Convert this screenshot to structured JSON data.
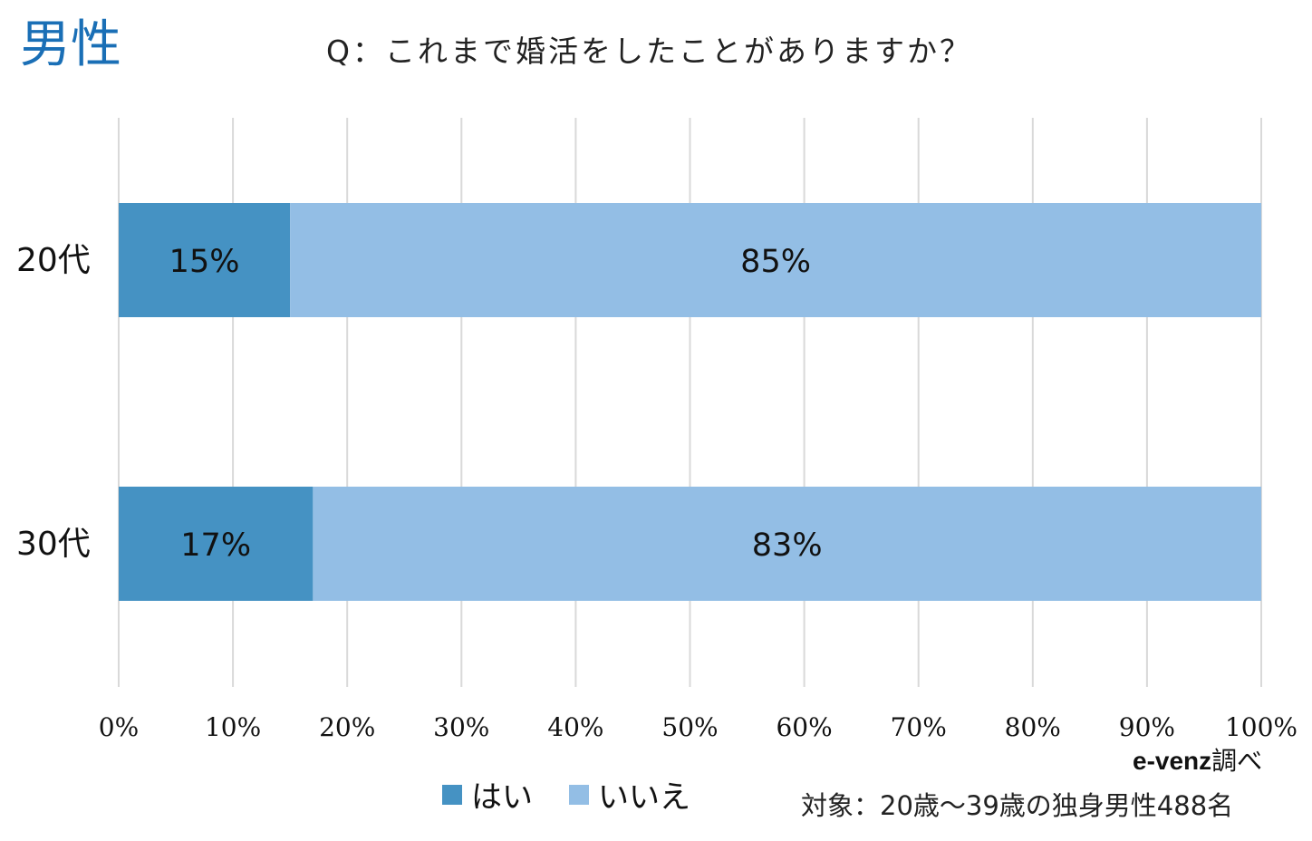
{
  "corner_title": "男性",
  "question": "Q：これまで婚活をしたことがありますか？",
  "source": {
    "name": "e-venz",
    "suffix": "調べ"
  },
  "target_note": "対象：20歳〜39歳の独身男性488名",
  "colors": {
    "yes": "#4592c3",
    "no": "#93bee5",
    "grid": "#d9d9d9",
    "title": "#1a6fb6"
  },
  "chart_data": {
    "type": "bar",
    "orientation": "horizontal",
    "stacked": true,
    "categories": [
      "20代",
      "30代"
    ],
    "series": [
      {
        "name": "はい",
        "values": [
          15,
          17
        ],
        "labels": [
          "15%",
          "17%"
        ]
      },
      {
        "name": "いいえ",
        "values": [
          85,
          83
        ],
        "labels": [
          "85%",
          "83%"
        ]
      }
    ],
    "xlim": [
      0,
      100
    ],
    "x_ticks": [
      "0%",
      "10%",
      "20%",
      "30%",
      "40%",
      "50%",
      "60%",
      "70%",
      "80%",
      "90%",
      "100%"
    ],
    "grid": "vertical",
    "legend": "bottom"
  }
}
